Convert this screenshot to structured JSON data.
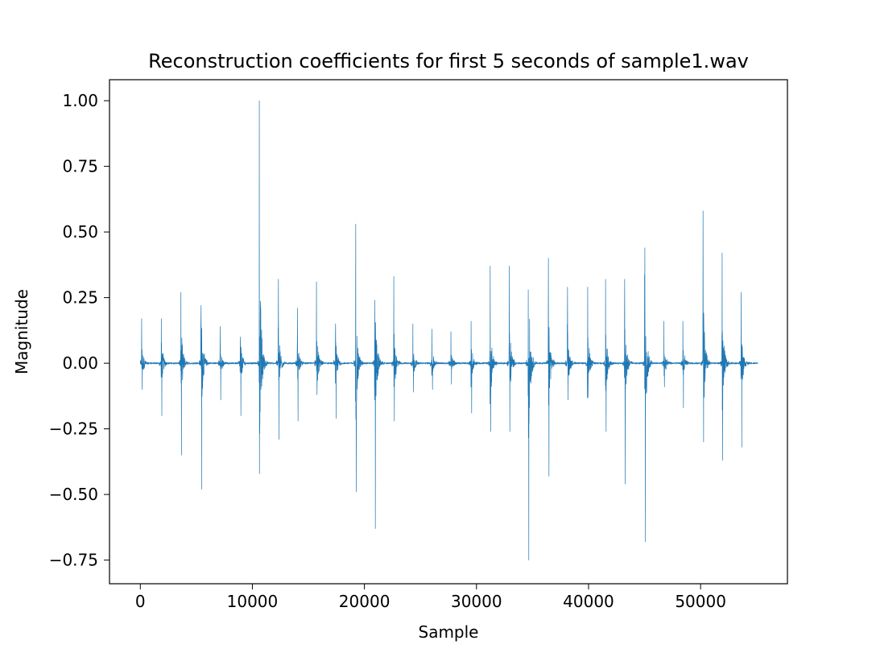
{
  "chart_data": {
    "type": "line",
    "title": "Reconstruction coefficients for first 5 seconds of sample1.wav",
    "xlabel": "Sample",
    "ylabel": "Magnitude",
    "xlim": [
      -2750,
      57750
    ],
    "ylim": [
      -0.84,
      1.08
    ],
    "xticks": [
      0,
      10000,
      20000,
      30000,
      40000,
      50000
    ],
    "xtick_labels": [
      "0",
      "10000",
      "20000",
      "30000",
      "40000",
      "50000"
    ],
    "yticks": [
      -0.75,
      -0.5,
      -0.25,
      0.0,
      0.25,
      0.5,
      0.75,
      1.0
    ],
    "ytick_labels": [
      "−0.75",
      "−0.50",
      "−0.25",
      "0.00",
      "0.25",
      "0.50",
      "0.75",
      "1.00"
    ],
    "grid": false,
    "color": "#1f77b4",
    "series": [
      {
        "x_start": 0,
        "x_end": 55125,
        "bursts": [
          {
            "x": 100,
            "peak": 0.17,
            "trough": -0.1
          },
          {
            "x": 1850,
            "peak": 0.17,
            "trough": -0.2
          },
          {
            "x": 3600,
            "peak": 0.27,
            "trough": -0.35
          },
          {
            "x": 5400,
            "peak": 0.22,
            "trough": -0.48
          },
          {
            "x": 7100,
            "peak": 0.14,
            "trough": -0.14
          },
          {
            "x": 8900,
            "peak": 0.1,
            "trough": -0.2
          },
          {
            "x": 10600,
            "peak": 1.0,
            "trough": -0.22
          },
          {
            "x": 12300,
            "peak": 0.32,
            "trough": -0.29
          },
          {
            "x": 14000,
            "peak": 0.21,
            "trough": -0.22
          },
          {
            "x": 15700,
            "peak": 0.31,
            "trough": -0.12
          },
          {
            "x": 17400,
            "peak": 0.15,
            "trough": -0.21
          },
          {
            "x": 19200,
            "peak": 0.53,
            "trough": -0.49
          },
          {
            "x": 20900,
            "peak": 0.24,
            "trough": -0.63
          },
          {
            "x": 22600,
            "peak": 0.33,
            "trough": -0.22
          },
          {
            "x": 24300,
            "peak": 0.15,
            "trough": -0.11
          },
          {
            "x": 26000,
            "peak": 0.13,
            "trough": -0.1
          },
          {
            "x": 27700,
            "peak": 0.12,
            "trough": -0.08
          },
          {
            "x": 29500,
            "peak": 0.16,
            "trough": -0.19
          },
          {
            "x": 31200,
            "peak": 0.37,
            "trough": -0.26
          },
          {
            "x": 32900,
            "peak": 0.37,
            "trough": -0.26
          },
          {
            "x": 34600,
            "peak": 0.28,
            "trough": -0.75
          },
          {
            "x": 36400,
            "peak": 0.4,
            "trough": -0.43
          },
          {
            "x": 38100,
            "peak": 0.29,
            "trough": -0.14
          },
          {
            "x": 39900,
            "peak": 0.29,
            "trough": -0.13
          },
          {
            "x": 41500,
            "peak": 0.32,
            "trough": -0.26
          },
          {
            "x": 43200,
            "peak": 0.32,
            "trough": -0.46
          },
          {
            "x": 45000,
            "peak": 0.44,
            "trough": -0.68
          },
          {
            "x": 46700,
            "peak": 0.16,
            "trough": -0.09
          },
          {
            "x": 48400,
            "peak": 0.16,
            "trough": -0.17
          },
          {
            "x": 50200,
            "peak": 0.58,
            "trough": -0.3
          },
          {
            "x": 51900,
            "peak": 0.42,
            "trough": -0.37
          },
          {
            "x": 53600,
            "peak": 0.27,
            "trough": -0.32
          }
        ]
      }
    ]
  }
}
